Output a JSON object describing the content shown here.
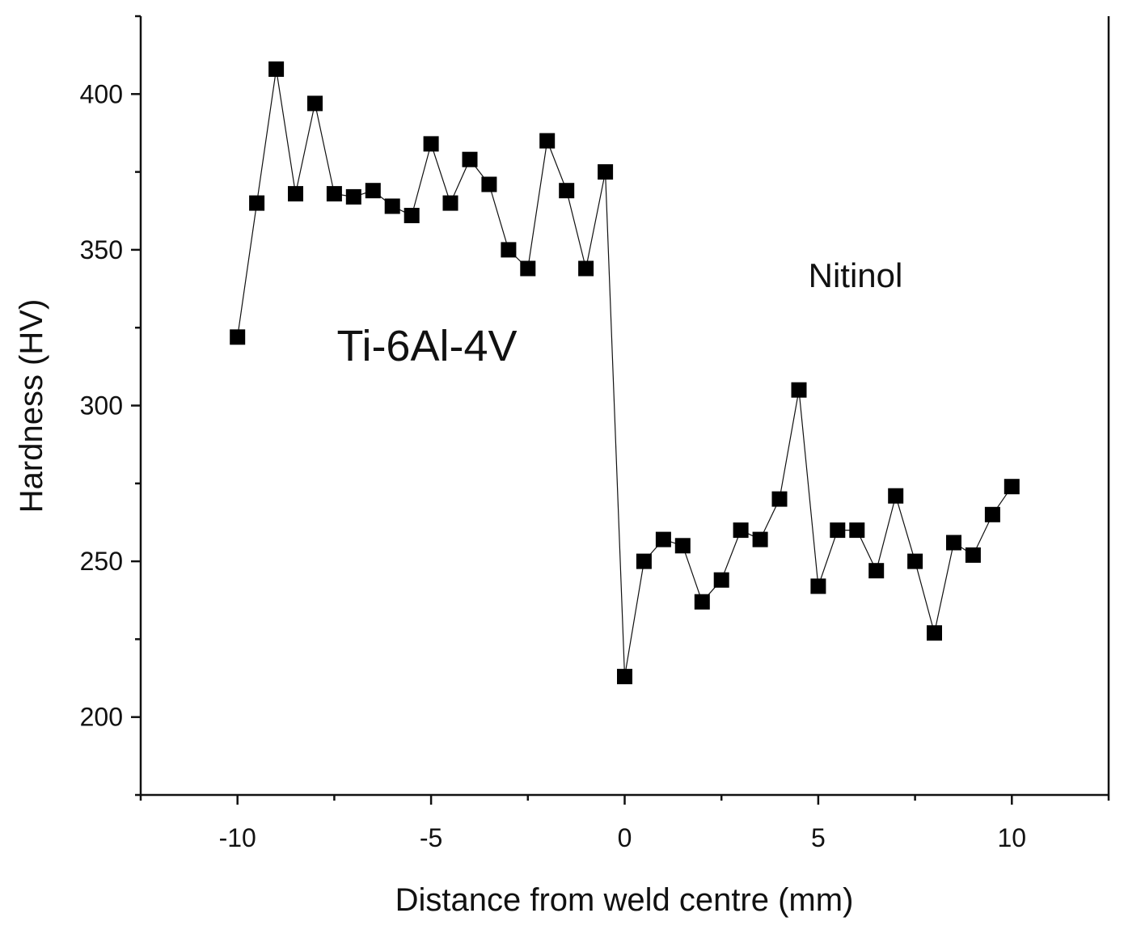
{
  "chart_data": {
    "type": "line",
    "title": "",
    "xlabel": "Distance from weld centre (mm)",
    "ylabel": "Hardness (HV)",
    "xlim": [
      -12.5,
      12.5
    ],
    "ylim": [
      175,
      425
    ],
    "x_major_ticks": [
      -10,
      -5,
      0,
      5,
      10
    ],
    "x_tick_labels": [
      "-10",
      "-5",
      "0",
      "5",
      "10"
    ],
    "x_minor_ticks": [
      -12.5,
      -7.5,
      -2.5,
      2.5,
      7.5,
      12.5
    ],
    "y_major_ticks": [
      200,
      250,
      300,
      350,
      400
    ],
    "y_tick_labels": [
      "200",
      "250",
      "300",
      "350",
      "400"
    ],
    "y_minor_ticks": [
      175,
      225,
      275,
      325,
      375,
      425
    ],
    "grid": false,
    "marker": "square",
    "color": "#000000",
    "annotations": [
      {
        "text": "Ti-6Al-4V",
        "x": -5.2,
        "y": 320
      },
      {
        "text": "Nitinol",
        "x": 6.0,
        "y": 342
      }
    ],
    "series": [
      {
        "name": "Hardness",
        "x": [
          -10,
          -9.5,
          -9,
          -8.5,
          -8,
          -7.5,
          -7,
          -6.5,
          -6,
          -5.5,
          -5,
          -4.5,
          -4,
          -3.5,
          -3,
          -2.5,
          -2,
          -1.5,
          -1,
          -0.5,
          0,
          0.5,
          1,
          1.5,
          2,
          2.5,
          3,
          3.5,
          4,
          4.5,
          5,
          5.5,
          6,
          6.5,
          7,
          7.5,
          8,
          8.5,
          9,
          9.5,
          10
        ],
        "values": [
          322,
          365,
          408,
          368,
          397,
          368,
          367,
          369,
          364,
          361,
          384,
          365,
          379,
          371,
          350,
          344,
          385,
          369,
          344,
          375,
          213,
          250,
          257,
          255,
          237,
          244,
          260,
          257,
          270,
          305,
          242,
          260,
          260,
          247,
          271,
          250,
          227,
          256,
          252,
          265,
          274
        ]
      }
    ]
  }
}
